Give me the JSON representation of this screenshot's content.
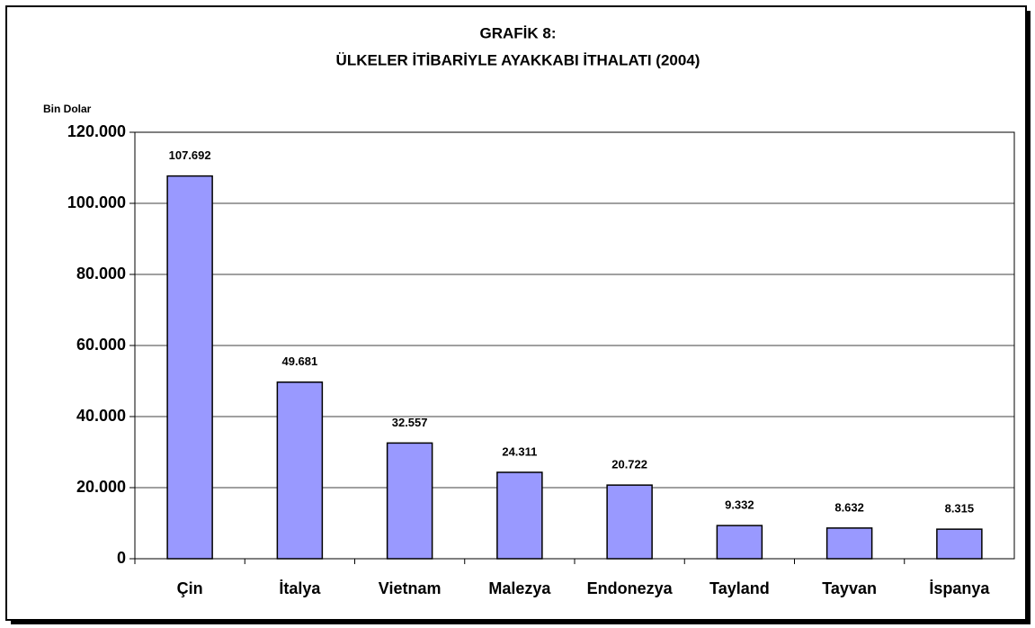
{
  "chart_data": {
    "type": "bar",
    "title": [
      "GRAFİK 8:",
      "ÜLKELER İTİBARİYLE AYAKKABI İTHALATI (2004)"
    ],
    "y_label": "Bin Dolar",
    "categories": [
      "Çin",
      "İtalya",
      "Vietnam",
      "Malezya",
      "Endonezya",
      "Tayland",
      "Tayvan",
      "İspanya"
    ],
    "values": [
      107692,
      49681,
      32557,
      24311,
      20722,
      9332,
      8632,
      8315
    ],
    "value_labels": [
      "107.692",
      "49.681",
      "32.557",
      "24.311",
      "20.722",
      "9.332",
      "8.632",
      "8.315"
    ],
    "color": "#9999ff",
    "ylim": [
      0,
      120000
    ],
    "yticks": [
      0,
      {
        "value": 20000,
        "label": "20.000"
      },
      {
        "value": 40000,
        "label": "40.000"
      },
      {
        "value": 60000,
        "label": "60.000"
      },
      {
        "value": 80000,
        "label": "80.000"
      },
      {
        "value": 100000,
        "label": "100.000"
      },
      {
        "value": 120000,
        "label": "120.000"
      }
    ],
    "grid": true
  }
}
